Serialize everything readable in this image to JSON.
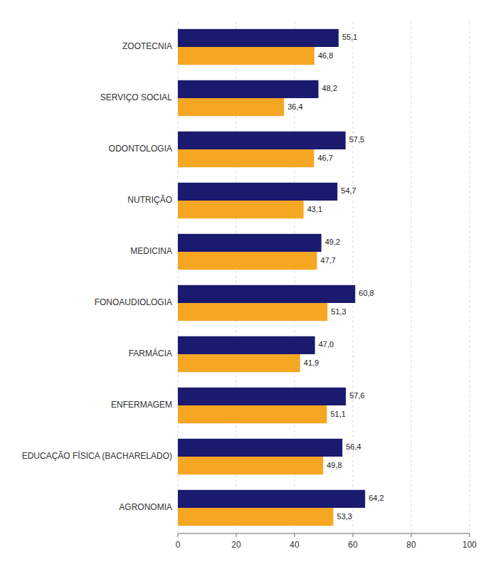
{
  "chart_data": {
    "type": "bar",
    "orientation": "horizontal",
    "categories": [
      "AGRONOMIA",
      "EDUCAÇÃO FÍSICA (BACHARELADO)",
      "ENFERMAGEM",
      "FARMÁCIA",
      "FONOAUDIOLOGIA",
      "MEDICINA",
      "NUTRIÇÃO",
      "ODONTOLOGIA",
      "SERVIÇO SOCIAL",
      "ZOOTECNIA"
    ],
    "series": [
      {
        "color": "#1a1a6e",
        "values": [
          64.2,
          56.4,
          57.6,
          47.0,
          60.8,
          49.2,
          54.7,
          57.5,
          48.2,
          55.1
        ],
        "value_labels": [
          "64,2",
          "56,4",
          "57,6",
          "47,0",
          "60,8",
          "49,2",
          "54,7",
          "57,5",
          "48,2",
          "55,1"
        ]
      },
      {
        "color": "#f5a623",
        "values": [
          53.3,
          49.8,
          51.1,
          41.9,
          51.3,
          47.7,
          43.1,
          46.7,
          36.4,
          46.8
        ],
        "value_labels": [
          "53,3",
          "49,8",
          "51,1",
          "41,9",
          "51,3",
          "47,7",
          "43,1",
          "46,7",
          "36,4",
          "46,8"
        ]
      }
    ],
    "xlim": [
      0,
      100
    ],
    "xticks": [
      0,
      20,
      40,
      60,
      80,
      100
    ],
    "grid": true,
    "data_labels": true
  }
}
